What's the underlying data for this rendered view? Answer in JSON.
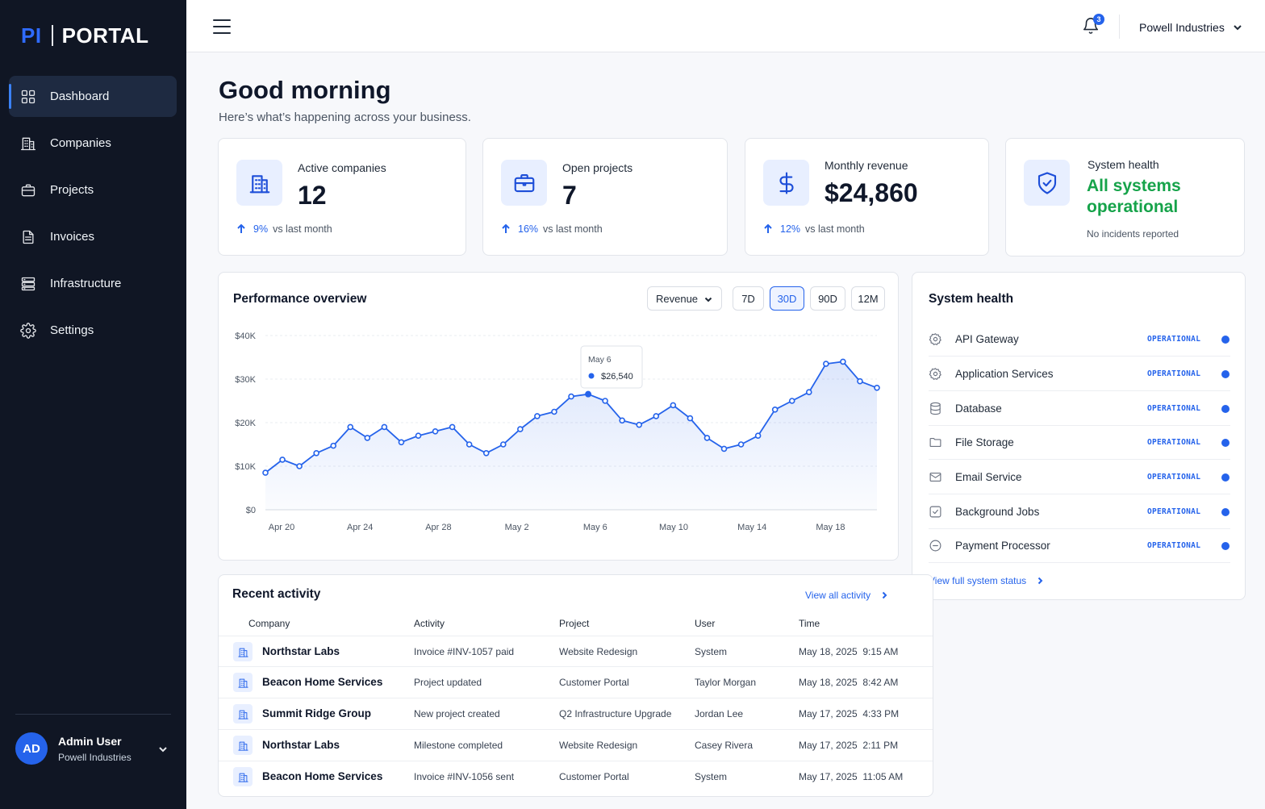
{
  "brand": {
    "short": "PI",
    "name": "PORTAL"
  },
  "sidebar": {
    "items": [
      {
        "label": "Dashboard",
        "icon": "grid-icon",
        "active": true
      },
      {
        "label": "Companies",
        "icon": "building-icon"
      },
      {
        "label": "Projects",
        "icon": "briefcase-icon"
      },
      {
        "label": "Invoices",
        "icon": "document-icon"
      },
      {
        "label": "Infrastructure",
        "icon": "server-icon"
      },
      {
        "label": "Settings",
        "icon": "gear-icon"
      }
    ],
    "user": {
      "initials": "AD",
      "name": "Admin User",
      "company": "Powell Industries"
    }
  },
  "topbar": {
    "notifications": "3",
    "organization": "Powell Industries"
  },
  "greeting": {
    "title": "Good morning",
    "subtitle": "Here’s what’s happening across your business."
  },
  "kpis": {
    "active_companies": {
      "label": "Active companies",
      "value": "12",
      "delta": "9%",
      "delta_suffix": "vs last month"
    },
    "open_projects": {
      "label": "Open projects",
      "value": "7",
      "delta": "16%",
      "delta_suffix": "vs last month"
    },
    "monthly_revenue": {
      "label": "Monthly revenue",
      "value": "$24,860",
      "delta": "12%",
      "delta_suffix": "vs last month"
    },
    "system_health": {
      "label": "System health",
      "status": "All systems operational",
      "note": "No incidents reported"
    }
  },
  "performance": {
    "title": "Performance overview",
    "metric": "Revenue",
    "ranges": [
      "7D",
      "30D",
      "90D",
      "12M"
    ],
    "active_range": "30D",
    "tooltip": {
      "date": "May 6",
      "value": "$26,540"
    }
  },
  "chart_data": {
    "type": "area",
    "title": "Performance overview",
    "series": [
      {
        "name": "Revenue",
        "values": [
          8500,
          11500,
          10000,
          13000,
          14700,
          19000,
          16500,
          19000,
          15500,
          17000,
          18000,
          19000,
          15000,
          13000,
          15000,
          18500,
          21500,
          22500,
          26000,
          26540,
          25000,
          20500,
          19500,
          21500,
          24000,
          21000,
          16500,
          14000,
          15000,
          17000,
          23000,
          25000,
          27000,
          33500,
          34000,
          29500,
          28000
        ]
      }
    ],
    "x_start": "Apr 20",
    "x_end": "May 20",
    "x_tick_labels": [
      "Apr 20",
      "Apr 24",
      "Apr 28",
      "May 2",
      "May 6",
      "May 10",
      "May 14",
      "May 18"
    ],
    "y_tick_labels": [
      "$0",
      "$10K",
      "$20K",
      "$30K",
      "$40K"
    ],
    "ylim": [
      0,
      40000
    ],
    "grid": true,
    "color": "#2563eb"
  },
  "system_health": {
    "title": "System health",
    "services": [
      {
        "name": "API Gateway",
        "status": "OPERATIONAL",
        "icon": "gear-icon"
      },
      {
        "name": "Application Services",
        "status": "OPERATIONAL",
        "icon": "gear-icon"
      },
      {
        "name": "Database",
        "status": "OPERATIONAL",
        "icon": "database-icon"
      },
      {
        "name": "File Storage",
        "status": "OPERATIONAL",
        "icon": "folder-icon"
      },
      {
        "name": "Email Service",
        "status": "OPERATIONAL",
        "icon": "mail-icon"
      },
      {
        "name": "Background Jobs",
        "status": "OPERATIONAL",
        "icon": "check-square-icon"
      },
      {
        "name": "Payment Processor",
        "status": "OPERATIONAL",
        "icon": "clock-icon"
      }
    ],
    "link": "View full system status"
  },
  "activity": {
    "title": "Recent activity",
    "link": "View all activity",
    "columns": [
      "Company",
      "Activity",
      "Project",
      "User",
      "Time"
    ],
    "rows": [
      {
        "company": "Northstar Labs",
        "activity": "Invoice #INV-1057 paid",
        "project": "Website Redesign",
        "user": "System",
        "time": "May 18, 2025  9:15 AM"
      },
      {
        "company": "Beacon Home Services",
        "activity": "Project updated",
        "project": "Customer Portal",
        "user": "Taylor Morgan",
        "time": "May 18, 2025  8:42 AM"
      },
      {
        "company": "Summit Ridge Group",
        "activity": "New project created",
        "project": "Q2 Infrastructure Upgrade",
        "user": "Jordan Lee",
        "time": "May 17, 2025  4:33 PM"
      },
      {
        "company": "Northstar Labs",
        "activity": "Milestone completed",
        "project": "Website Redesign",
        "user": "Casey Rivera",
        "time": "May 17, 2025  2:11 PM"
      },
      {
        "company": "Beacon Home Services",
        "activity": "Invoice #INV-1056 sent",
        "project": "Customer Portal",
        "user": "System",
        "time": "May 17, 2025  11:05 AM"
      }
    ]
  }
}
